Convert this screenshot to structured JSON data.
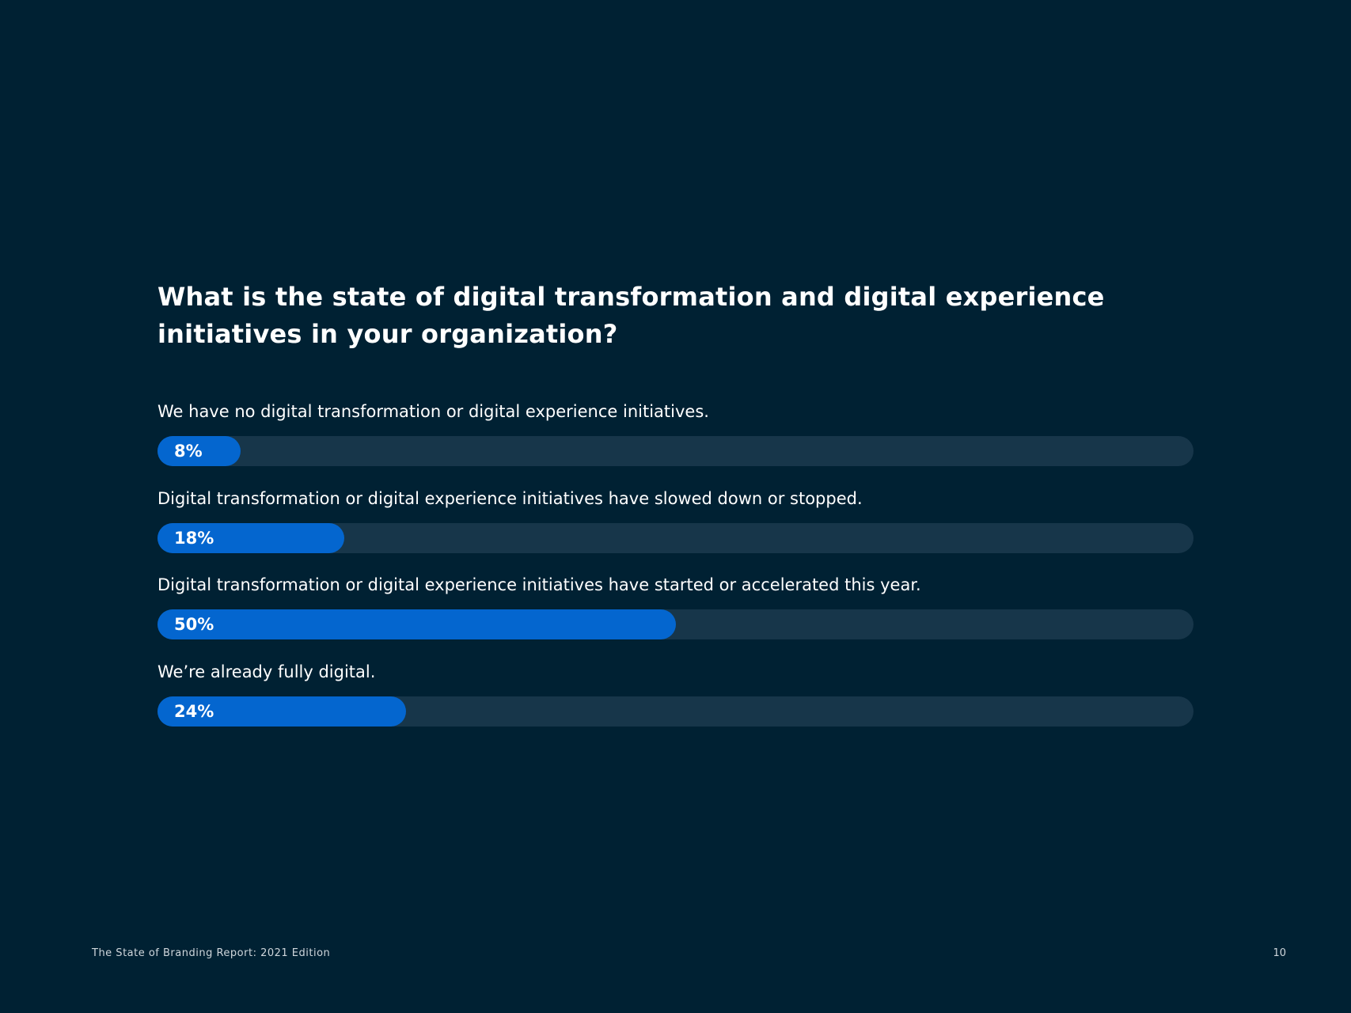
{
  "question": "What is the state of digital transformation and digital experience initiatives in your organization?",
  "footer": {
    "report_title": "The State of Branding Report: 2021 Edition",
    "page_number": "10"
  },
  "colors": {
    "background": "#002133",
    "track": "#17364a",
    "fill": "#0466cf",
    "text": "#ffffff"
  },
  "chart_data": {
    "type": "bar",
    "orientation": "horizontal",
    "title": "What is the state of digital transformation and digital experience initiatives in your organization?",
    "ylim": [
      0,
      100
    ],
    "unit": "%",
    "categories": [
      "We have no digital transformation or digital experience initiatives.",
      "Digital transformation or digital experience initiatives have slowed down or stopped.",
      "Digital transformation or digital experience initiatives have started or accelerated this year.",
      "We’re already fully digital."
    ],
    "values": [
      8,
      18,
      50,
      24
    ],
    "value_labels": [
      "8%",
      "18%",
      "50%",
      "24%"
    ]
  }
}
